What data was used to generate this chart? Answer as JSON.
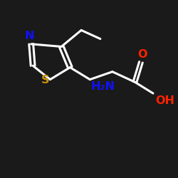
{
  "background_color": "#1a1a1a",
  "bond_color": "#ffffff",
  "bond_width": 2.2,
  "N_color": "#1010ff",
  "S_color": "#c8900a",
  "O_color": "#ff2200",
  "text_color": "#ffffff",
  "N_label": "N",
  "S_label": "S",
  "O_label": "O",
  "NH2_label": "H₂N",
  "OH_label": "OH",
  "figsize": [
    2.5,
    2.5
  ],
  "dpi": 100
}
